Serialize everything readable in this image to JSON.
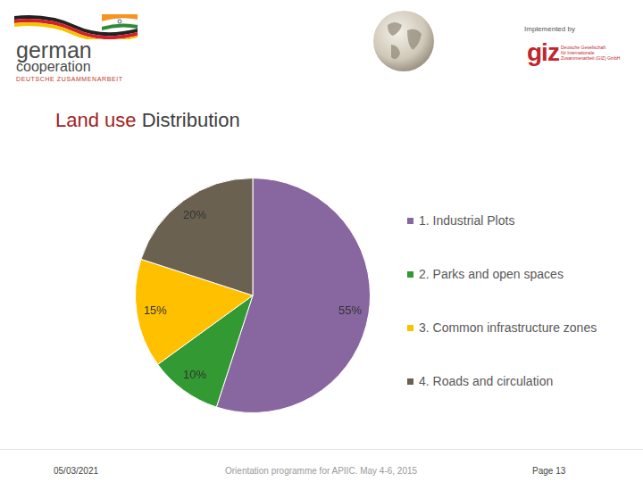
{
  "header": {
    "logo_left": {
      "line1": "german",
      "line2": "cooperation",
      "line3": "DEUTSCHE ZUSAMMENARBEIT"
    },
    "implemented_by": "Implemented by",
    "logo_right": {
      "name": "giz",
      "lines": [
        "Deutsche Gesellschaft",
        "für Internationale",
        "Zusammenarbeit (GIZ) GmbH"
      ]
    }
  },
  "chart_data": {
    "type": "pie",
    "title": "Land use Distribution",
    "categories": [
      "1. Industrial Plots",
      "2. Parks and open spaces",
      "3. Common infrastructure zones",
      "4. Roads and circulation"
    ],
    "values": [
      55,
      10,
      15,
      20
    ],
    "value_labels": [
      "55%",
      "10%",
      "15%",
      "20%"
    ],
    "colors": [
      "#8866a0",
      "#339933",
      "#ffc000",
      "#6b6150"
    ],
    "legend": "right",
    "data_labels": true
  },
  "footer": {
    "date": "05/03/2021",
    "event": "Orientation programme for APIIC. May 4-6, 2015",
    "page": "Page 13"
  }
}
